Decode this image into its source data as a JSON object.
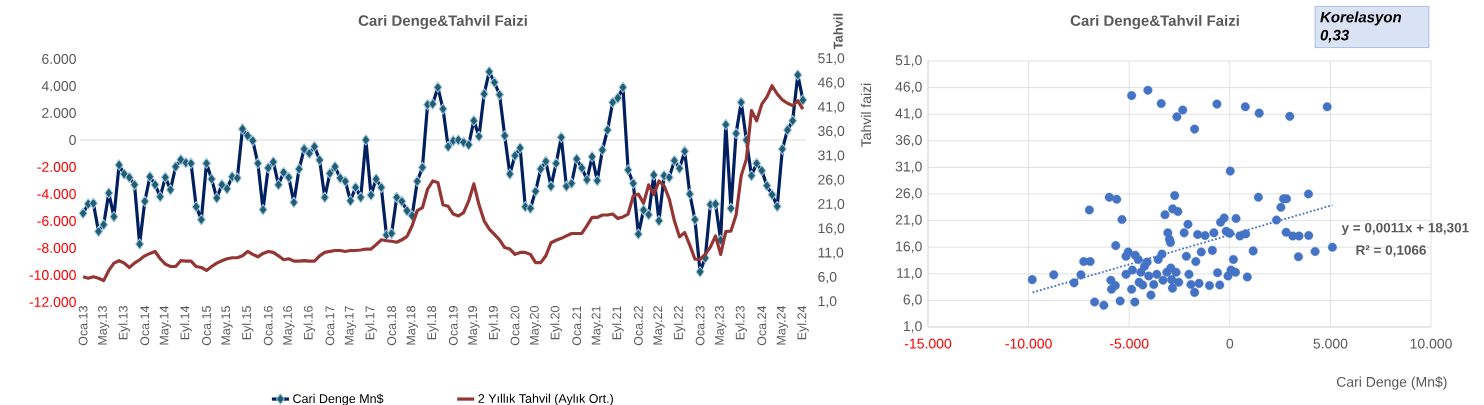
{
  "chart_data": [
    {
      "type": "line",
      "title": "Cari Denge&Tahvil Faizi",
      "y2label": "Tahvil",
      "categories": [
        "Oca.13",
        null,
        null,
        null,
        "May.13",
        null,
        null,
        null,
        "Eyl.13",
        null,
        null,
        null,
        "Oca.14",
        null,
        null,
        null,
        "May.14",
        null,
        null,
        null,
        "Eyl.14",
        null,
        null,
        null,
        "Oca.15",
        null,
        null,
        null,
        "May.15",
        null,
        null,
        null,
        "Eyl.15",
        null,
        null,
        null,
        "Oca.16",
        null,
        null,
        null,
        "May.16",
        null,
        null,
        null,
        "Eyl.16",
        null,
        null,
        null,
        "Oca.17",
        null,
        null,
        null,
        "May.17",
        null,
        null,
        null,
        "Eyl.17",
        null,
        null,
        null,
        "Oca.18",
        null,
        null,
        null,
        "May.18",
        null,
        null,
        null,
        "Eyl.18",
        null,
        null,
        null,
        "Oca.19",
        null,
        null,
        null,
        "May.19",
        null,
        null,
        null,
        "Eyl.19",
        null,
        null,
        null,
        "Oca.20",
        null,
        null,
        null,
        "May.20",
        null,
        null,
        null,
        "Eyl.20",
        null,
        null,
        null,
        "Oca.21",
        null,
        null,
        null,
        "May.21",
        null,
        null,
        null,
        "Eyl.21",
        null,
        null,
        null,
        "Oca.22",
        null,
        null,
        null,
        "May.22",
        null,
        null,
        null,
        "Eyl.22",
        null,
        null,
        null,
        "Oca.23",
        null,
        null,
        null,
        "May.23",
        null,
        null,
        null,
        "Eyl.23",
        null,
        null,
        null,
        "Oca.24",
        null,
        null,
        null,
        "May.24",
        null,
        null,
        null,
        "Eyl.24"
      ],
      "series": [
        {
          "name": "Cari Denge Mn$",
          "color": "#002060",
          "marker": "diamond",
          "values": [
            -5430,
            -4740,
            -4690,
            -6770,
            -6270,
            -3930,
            -5680,
            -1850,
            -2520,
            -2770,
            -3310,
            -7710,
            -4540,
            -2720,
            -3310,
            -4200,
            -2770,
            -3680,
            -1980,
            -1460,
            -1680,
            -1730,
            -4940,
            -5900,
            -1730,
            -2890,
            -4300,
            -3310,
            -3610,
            -2720,
            -2820,
            820,
            320,
            -50,
            -1730,
            -5160,
            -2070,
            -1630,
            -3310,
            -2400,
            -2770,
            -4620,
            -2150,
            -670,
            -990,
            -490,
            -1480,
            -4250,
            -2470,
            -1980,
            -2820,
            -3060,
            -4500,
            -3510,
            -4250,
            0,
            -4080,
            -2890,
            -3510,
            -7040,
            -6920,
            -4250,
            -4540,
            -5240,
            -5610,
            -3060,
            -2030,
            2620,
            2670,
            3900,
            2300,
            -490,
            -50,
            0,
            -170,
            -350,
            1430,
            270,
            3410,
            5060,
            4270,
            3360,
            320,
            -2520,
            -1160,
            -590,
            -4940,
            -5060,
            -3800,
            -2150,
            -1580,
            -3430,
            -1730,
            200,
            -3430,
            -3210,
            -1410,
            -2070,
            -2940,
            -1240,
            -3010,
            -740,
            740,
            2790,
            3110,
            3900,
            -2220,
            -3210,
            -6970,
            -5190,
            -5530,
            -2590,
            -5980,
            -2640,
            -2770,
            -1530,
            -2100,
            -840,
            -4000,
            -5900,
            -9760,
            -8740,
            -4790,
            -4740,
            -7410,
            1140,
            -5060,
            490,
            2790,
            0,
            -2640,
            -1730,
            -2270,
            -3380,
            -4050,
            -4920,
            -670,
            740,
            1430,
            4820,
            2960
          ]
        },
        {
          "name": "2 Yıllık Tahvil (Aylık Ort.)",
          "color": "#943634",
          "axis": "y2",
          "values": [
            6.2,
            5.9,
            6.2,
            5.9,
            5.4,
            7.5,
            9.0,
            9.5,
            9.0,
            8.1,
            9.0,
            9.7,
            10.5,
            11.0,
            11.4,
            9.9,
            8.8,
            8.3,
            8.3,
            9.5,
            9.4,
            9.4,
            8.3,
            8.1,
            7.5,
            8.3,
            9.0,
            9.5,
            9.9,
            10.1,
            10.1,
            10.5,
            11.4,
            10.8,
            10.3,
            11.0,
            11.4,
            11.2,
            10.5,
            9.7,
            9.9,
            9.4,
            9.4,
            9.5,
            9.4,
            9.4,
            10.5,
            11.2,
            11.4,
            11.6,
            11.6,
            11.4,
            11.6,
            11.6,
            11.7,
            11.9,
            11.9,
            12.8,
            13.8,
            13.6,
            13.5,
            13.3,
            13.8,
            14.5,
            16.7,
            19.8,
            20.4,
            24.2,
            25.9,
            25.6,
            21.0,
            20.7,
            19.1,
            18.7,
            19.4,
            21.8,
            25.3,
            21.0,
            17.7,
            16.0,
            14.9,
            13.8,
            12.2,
            11.9,
            10.8,
            11.2,
            11.2,
            10.8,
            9.1,
            9.1,
            10.5,
            13.2,
            13.7,
            14.1,
            14.6,
            15.1,
            15.1,
            15.1,
            16.7,
            18.4,
            18.4,
            18.9,
            18.9,
            19.1,
            18.2,
            18.5,
            19.1,
            22.8,
            23.2,
            21.3,
            25.1,
            23.1,
            25.9,
            24.9,
            22.2,
            17.7,
            14.4,
            15.3,
            12.7,
            9.8,
            9.8,
            10.8,
            12.3,
            14.6,
            10.8,
            15.5,
            15.6,
            18.9,
            27.0,
            30.4,
            40.4,
            38.3,
            41.7,
            43.2,
            45.5,
            43.8,
            42.6,
            41.9,
            41.4,
            42.4,
            40.7
          ]
        }
      ],
      "ylim": [
        -12000,
        6000
      ],
      "yticks": [
        {
          "value": -12000,
          "label": "-12.000"
        },
        {
          "value": -10000,
          "label": "-10.000"
        },
        {
          "value": -8000,
          "label": "-8.000"
        },
        {
          "value": -6000,
          "label": "-6.000"
        },
        {
          "value": -4000,
          "label": "-4.000"
        },
        {
          "value": -2000,
          "label": "-2.000"
        },
        0,
        {
          "value": 2000,
          "label": "2.000"
        },
        {
          "value": 4000,
          "label": "4.000"
        },
        {
          "value": 6000,
          "label": "6.000"
        }
      ],
      "y2lim": [
        1,
        51
      ],
      "y2ticks": [
        {
          "value": 1,
          "label": "1,0"
        },
        {
          "value": 6,
          "label": "6,0"
        },
        {
          "value": 11,
          "label": "11,0"
        },
        {
          "value": 16,
          "label": "16,0"
        },
        {
          "value": 21,
          "label": "21,0"
        },
        {
          "value": 26,
          "label": "26,0"
        },
        {
          "value": 31,
          "label": "31,0"
        },
        {
          "value": 36,
          "label": "36,0"
        },
        {
          "value": 41,
          "label": "41,0"
        },
        {
          "value": 46,
          "label": "46,0"
        },
        {
          "value": 51,
          "label": "51,0"
        }
      ],
      "ref_lines": [
        {
          "axis": "y",
          "value": 0,
          "color": "#d9d9d9"
        }
      ],
      "legend": "bottom"
    },
    {
      "type": "scatter",
      "title": "Cari Denge&Tahvil Faizi",
      "xlabel": "Cari Denge (Mn$)",
      "ylabel": "Tahvil faizi",
      "annotations": [
        "Korelasyon 0,33",
        "y = 0,0011x + 18,301",
        "R² = 0,1066"
      ],
      "series": [
        {
          "type": "scatter",
          "color": "#4472c4",
          "marker": "circle",
          "x": [
            -9820,
            -8750,
            -7740,
            -7400,
            -7260,
            -6940,
            -6980,
            -6720,
            -6260,
            -5990,
            -5910,
            -5880,
            -5690,
            -5670,
            -5620,
            -5450,
            -5360,
            -5160,
            -5160,
            -5050,
            -4880,
            -4880,
            -4840,
            -4720,
            -4700,
            -4550,
            -4510,
            -4420,
            -4330,
            -4240,
            -4110,
            -4070,
            -4030,
            -3920,
            -3780,
            -3630,
            -3560,
            -3410,
            -3370,
            -3320,
            -3220,
            -3130,
            -3080,
            -3000,
            -2950,
            -2930,
            -2890,
            -2850,
            -2840,
            -2740,
            -2670,
            -2630,
            -2580,
            -2540,
            -2340,
            -2270,
            -2160,
            -2080,
            -2030,
            -1930,
            -1750,
            -1750,
            -1690,
            -1600,
            -1530,
            -1420,
            -1230,
            -1010,
            -870,
            -790,
            -640,
            -610,
            -500,
            -460,
            -280,
            -180,
            -90,
            0,
            20,
            60,
            180,
            280,
            310,
            500,
            770,
            790,
            870,
            1160,
            1420,
            1460,
            2320,
            2540,
            2670,
            2820,
            2800,
            2980,
            3130,
            3410,
            3440,
            3910,
            3920,
            4240,
            4840,
            5100
          ],
          "values": [
            9.9,
            10.8,
            9.3,
            10.8,
            13.3,
            13.3,
            23.0,
            5.7,
            5.1,
            25.4,
            9.8,
            8.1,
            8.8,
            16.3,
            25.0,
            5.9,
            21.2,
            14.3,
            10.9,
            15.1,
            44.5,
            8.1,
            11.7,
            5.7,
            14.5,
            13.7,
            9.4,
            11.3,
            8.9,
            12.4,
            13.2,
            45.5,
            10.6,
            7.0,
            9.0,
            10.9,
            13.7,
            43.0,
            14.7,
            9.8,
            22.1,
            11.3,
            18.7,
            17.5,
            16.9,
            12.1,
            9.9,
            8.3,
            23.2,
            25.7,
            11.3,
            40.5,
            22.7,
            9.4,
            41.8,
            18.7,
            14.3,
            20.3,
            10.9,
            9.0,
            38.2,
            7.5,
            13.3,
            18.4,
            9.2,
            15.1,
            18.2,
            8.8,
            15.4,
            18.7,
            42.9,
            11.2,
            8.9,
            20.7,
            21.5,
            19.0,
            10.6,
            18.6,
            30.3,
            11.7,
            13.7,
            11.3,
            21.4,
            18.1,
            42.4,
            18.5,
            10.4,
            15.3,
            25.4,
            41.2,
            21.1,
            23.5,
            25.1,
            25.1,
            18.8,
            40.6,
            18.1,
            14.2,
            18.1,
            26.0,
            18.2,
            15.2,
            42.4,
            16.0
          ]
        },
        {
          "type": "line",
          "color": "#4472c4",
          "marker": "none",
          "line_style": "dotted",
          "x": [
            -9800,
            5100
          ],
          "values": [
            7.5,
            23.9
          ]
        }
      ],
      "xlim": [
        -15000,
        10000
      ],
      "xticks": [
        {
          "value": -15000,
          "label": "-15.000"
        },
        {
          "value": -10000,
          "label": "-10.000"
        },
        {
          "value": -5000,
          "label": "-5.000"
        },
        0,
        {
          "value": 5000,
          "label": "5.000"
        },
        {
          "value": 10000,
          "label": "10.000"
        }
      ],
      "ylim": [
        1,
        51
      ],
      "yticks": [
        {
          "value": 1,
          "label": "1,0"
        },
        {
          "value": 6,
          "label": "6,0"
        },
        {
          "value": 11,
          "label": "11,0"
        },
        {
          "value": 16,
          "label": "16,0"
        },
        {
          "value": 21,
          "label": "21,0"
        },
        {
          "value": 26,
          "label": "26,0"
        },
        {
          "value": 31,
          "label": "31,0"
        },
        {
          "value": 36,
          "label": "36,0"
        },
        {
          "value": 41,
          "label": "41,0"
        },
        {
          "value": 46,
          "label": "46,0"
        },
        {
          "value": 51,
          "label": "51,0"
        }
      ],
      "grid": true
    }
  ]
}
